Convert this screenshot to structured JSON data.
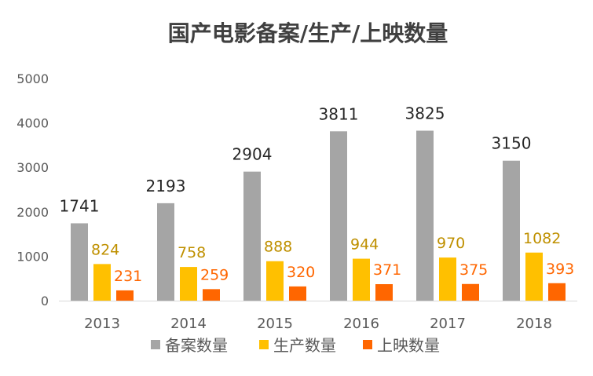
{
  "chart_data": {
    "type": "bar",
    "title": "国产电影备案/生产/上映数量",
    "categories": [
      "2013",
      "2014",
      "2015",
      "2016",
      "2017",
      "2018"
    ],
    "ylim": [
      0,
      5000
    ],
    "yticks": [
      0,
      1000,
      2000,
      3000,
      4000,
      5000
    ],
    "grid": false,
    "legend_position": "bottom",
    "series": [
      {
        "name": "备案数量",
        "color": "#A5A5A5",
        "label_color": "#262626",
        "values": [
          1741,
          2193,
          2904,
          3811,
          3825,
          3150
        ]
      },
      {
        "name": "生产数量",
        "color": "#FFC000",
        "label_color": "#BF9000",
        "values": [
          824,
          758,
          888,
          944,
          970,
          1082
        ]
      },
      {
        "name": "上映数量",
        "color": "#FF6600",
        "label_color": "#FF6600",
        "values": [
          231,
          259,
          320,
          371,
          375,
          393
        ]
      }
    ]
  }
}
